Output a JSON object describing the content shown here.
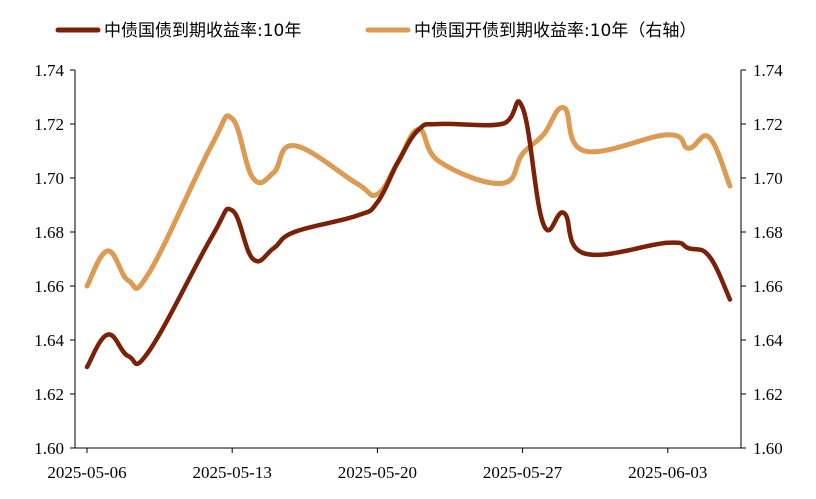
{
  "chart_data": {
    "type": "line",
    "title": "",
    "xlabel": "",
    "ylabel_left": "",
    "ylabel_right": "",
    "ylim_left": [
      1.6,
      1.74
    ],
    "ylim_right": [
      1.6,
      1.74
    ],
    "y_ticks": [
      "1.60",
      "1.62",
      "1.64",
      "1.66",
      "1.68",
      "1.70",
      "1.72",
      "1.74"
    ],
    "x_ticks": [
      "2025-05-06",
      "2025-05-13",
      "2025-05-20",
      "2025-05-27",
      "2025-06-03"
    ],
    "x_range": [
      "2025-05-06",
      "2025-06-06"
    ],
    "legend_position": "top",
    "grid": false,
    "series": [
      {
        "name": "中债国债到期收益率:10年",
        "axis": "left",
        "color": "#7b2108",
        "x": [
          "2025-05-06",
          "2025-05-07",
          "2025-05-08",
          "2025-05-09",
          "2025-05-12",
          "2025-05-13",
          "2025-05-14",
          "2025-05-15",
          "2025-05-16",
          "2025-05-19",
          "2025-05-20",
          "2025-05-21",
          "2025-05-22",
          "2025-05-23",
          "2025-05-26",
          "2025-05-27",
          "2025-05-28",
          "2025-05-29",
          "2025-05-30",
          "2025-06-03",
          "2025-06-04",
          "2025-06-05",
          "2025-06-06"
        ],
        "values": [
          1.63,
          1.642,
          1.634,
          1.636,
          1.678,
          1.688,
          1.67,
          1.674,
          1.68,
          1.686,
          1.691,
          1.706,
          1.718,
          1.72,
          1.72,
          1.726,
          1.683,
          1.687,
          1.672,
          1.676,
          1.674,
          1.671,
          1.655
        ]
      },
      {
        "name": "中债国开债到期收益率:10年（右轴）",
        "axis": "right",
        "color": "#dc9a52",
        "x": [
          "2025-05-06",
          "2025-05-07",
          "2025-05-08",
          "2025-05-09",
          "2025-05-12",
          "2025-05-13",
          "2025-05-14",
          "2025-05-15",
          "2025-05-16",
          "2025-05-19",
          "2025-05-20",
          "2025-05-21",
          "2025-05-22",
          "2025-05-23",
          "2025-05-26",
          "2025-05-27",
          "2025-05-28",
          "2025-05-29",
          "2025-05-30",
          "2025-06-03",
          "2025-06-04",
          "2025-06-05",
          "2025-06-06"
        ],
        "values": [
          1.66,
          1.673,
          1.662,
          1.665,
          1.712,
          1.722,
          1.7,
          1.702,
          1.712,
          1.698,
          1.694,
          1.706,
          1.718,
          1.706,
          1.698,
          1.709,
          1.716,
          1.726,
          1.71,
          1.716,
          1.711,
          1.715,
          1.697
        ]
      }
    ]
  }
}
